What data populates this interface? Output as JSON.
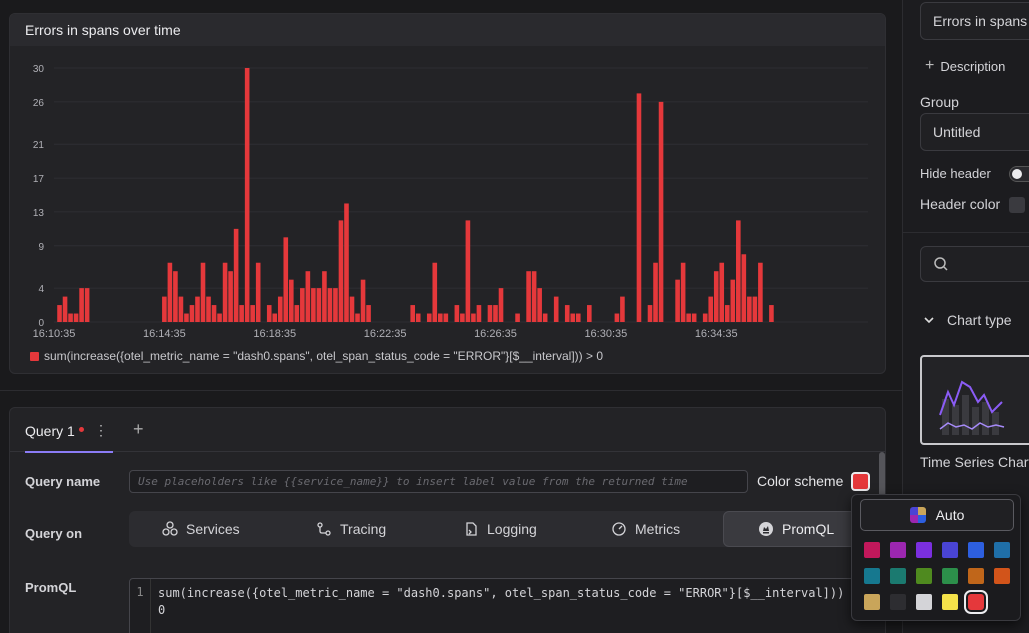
{
  "chart_panel": {
    "title": "Errors in spans over time",
    "legend_label": "sum(increase({otel_metric_name = \"dash0.spans\", otel_span_status_code = \"ERROR\"}[$__interval])) > 0",
    "legend_color": "#e5383b"
  },
  "chart_data": {
    "type": "bar",
    "title": "Errors in spans over time",
    "ylim": [
      0,
      30
    ],
    "y_ticks": [
      "0",
      "4",
      "9",
      "13",
      "17",
      "21",
      "26",
      "30"
    ],
    "x_ticks": [
      "16:10:35",
      "16:14:35",
      "16:18:35",
      "16:22:35",
      "16:26:35",
      "16:30:35",
      "16:34:35"
    ],
    "time_range_minutes": [
      0,
      29.5
    ],
    "series": [
      {
        "name": "sum(increase({otel_metric_name = \"dash0.spans\", otel_span_status_code = \"ERROR\"}[$__interval])) > 0",
        "color": "#e5383b",
        "points": [
          [
            0.2,
            2
          ],
          [
            0.4,
            3
          ],
          [
            0.6,
            1
          ],
          [
            0.8,
            1
          ],
          [
            1.0,
            4
          ],
          [
            1.2,
            4
          ],
          [
            4.0,
            3
          ],
          [
            4.2,
            7
          ],
          [
            4.4,
            6
          ],
          [
            4.6,
            3
          ],
          [
            4.8,
            1
          ],
          [
            5.0,
            2
          ],
          [
            5.2,
            3
          ],
          [
            5.4,
            7
          ],
          [
            5.6,
            3
          ],
          [
            5.8,
            2
          ],
          [
            6.0,
            1
          ],
          [
            6.2,
            7
          ],
          [
            6.4,
            6
          ],
          [
            6.6,
            11
          ],
          [
            6.8,
            2
          ],
          [
            7.0,
            30
          ],
          [
            7.2,
            2
          ],
          [
            7.4,
            7
          ],
          [
            7.8,
            2
          ],
          [
            8.0,
            1
          ],
          [
            8.2,
            3
          ],
          [
            8.4,
            10
          ],
          [
            8.6,
            5
          ],
          [
            8.8,
            2
          ],
          [
            9.0,
            4
          ],
          [
            9.2,
            6
          ],
          [
            9.4,
            4
          ],
          [
            9.6,
            4
          ],
          [
            9.8,
            6
          ],
          [
            10.0,
            4
          ],
          [
            10.2,
            4
          ],
          [
            10.4,
            12
          ],
          [
            10.6,
            14
          ],
          [
            10.8,
            3
          ],
          [
            11.0,
            1
          ],
          [
            11.2,
            5
          ],
          [
            11.4,
            2
          ],
          [
            13.0,
            2
          ],
          [
            13.2,
            1
          ],
          [
            13.6,
            1
          ],
          [
            13.8,
            7
          ],
          [
            14.0,
            1
          ],
          [
            14.2,
            1
          ],
          [
            14.6,
            2
          ],
          [
            14.8,
            1
          ],
          [
            15.0,
            12
          ],
          [
            15.2,
            1
          ],
          [
            15.4,
            2
          ],
          [
            15.8,
            2
          ],
          [
            16.0,
            2
          ],
          [
            16.2,
            4
          ],
          [
            16.8,
            1
          ],
          [
            17.2,
            6
          ],
          [
            17.4,
            6
          ],
          [
            17.6,
            4
          ],
          [
            17.8,
            1
          ],
          [
            18.2,
            3
          ],
          [
            18.6,
            2
          ],
          [
            18.8,
            1
          ],
          [
            19.0,
            1
          ],
          [
            19.4,
            2
          ],
          [
            20.4,
            1
          ],
          [
            20.6,
            3
          ],
          [
            21.2,
            27
          ],
          [
            21.6,
            2
          ],
          [
            21.8,
            7
          ],
          [
            22.0,
            26
          ],
          [
            22.6,
            5
          ],
          [
            22.8,
            7
          ],
          [
            23.0,
            1
          ],
          [
            23.2,
            1
          ],
          [
            23.6,
            1
          ],
          [
            23.8,
            3
          ],
          [
            24.0,
            6
          ],
          [
            24.2,
            7
          ],
          [
            24.4,
            2
          ],
          [
            24.6,
            5
          ],
          [
            24.8,
            12
          ],
          [
            25.0,
            8
          ],
          [
            25.2,
            3
          ],
          [
            25.4,
            3
          ],
          [
            25.6,
            7
          ],
          [
            26.0,
            2
          ]
        ]
      }
    ]
  },
  "query_panel": {
    "tab_label": "Query 1",
    "query_name_label": "Query name",
    "query_name_placeholder": "Use placeholders like {{service_name}} to insert label value from the returned time",
    "color_scheme_label": "Color scheme",
    "color_scheme_color": "#e5383b",
    "query_on_label": "Query on",
    "query_on_options": [
      "Services",
      "Tracing",
      "Logging",
      "Metrics",
      "PromQL"
    ],
    "query_on_selected": "PromQL",
    "promql_label": "PromQL",
    "promql_line_number": "1",
    "promql_code": "sum(increase({otel_metric_name = \"dash0.spans\", otel_span_status_code = \"ERROR\"}[$__interval])) >\n0"
  },
  "sidebar": {
    "title_value": "Errors in spans over time",
    "description_button": "Description",
    "group_label": "Group",
    "group_value": "Untitled",
    "hide_header_label": "Hide header",
    "header_color_label": "Header color",
    "chart_type_label": "Chart type",
    "chart_type_value": "Time Series Chart"
  },
  "color_popup": {
    "auto_label": "Auto",
    "swatches": [
      "#c2185b",
      "#9c27b0",
      "#7b2fe0",
      "#4a44d4",
      "#2d5fe0",
      "#1f6fa8",
      "#16788f",
      "#1b7a70",
      "#4f8a1f",
      "#2c8f4a",
      "#c0661a",
      "#d2541a",
      "#c9a55a",
      "#2d2d31",
      "#d4d4d8",
      "#f5e24a",
      "#e5383b"
    ],
    "selected": "#e5383b"
  }
}
